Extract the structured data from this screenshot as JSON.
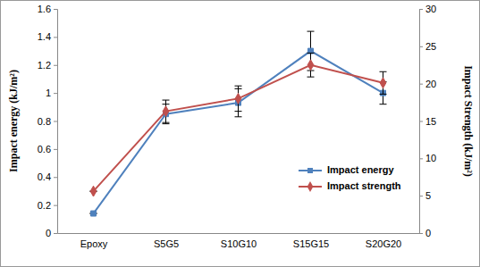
{
  "chart_data": {
    "type": "line",
    "categories": [
      "Epoxy",
      "S5G5",
      "S10G10",
      "S15G15",
      "S20G20"
    ],
    "y_label": "Impact energy (kJ/m²)",
    "y2_label": "Impact Strength (kJ/m²)",
    "ylim": [
      0,
      1.6
    ],
    "yticks": [
      0,
      0.2,
      0.4,
      0.6,
      0.8,
      1,
      1.2,
      1.4,
      1.6
    ],
    "y2lim": [
      0,
      30
    ],
    "y2ticks": [
      0,
      5,
      10,
      15,
      20,
      25,
      30
    ],
    "legend": "lower right",
    "series": [
      {
        "name": "Impact energy",
        "color": "#4f81bd",
        "marker": "square",
        "values": [
          0.14,
          0.85,
          0.93,
          1.3,
          1.0
        ],
        "errors": [
          0,
          0.07,
          0.1,
          0.14,
          0.08
        ]
      },
      {
        "name": "Impact strength",
        "color": "#c0504d",
        "marker": "diamond",
        "axis": "y2",
        "values": [
          5.6,
          16.3,
          18.0,
          22.5,
          20.1
        ],
        "errors": [
          0,
          1.5,
          1.7,
          1.6,
          1.5
        ]
      }
    ]
  }
}
